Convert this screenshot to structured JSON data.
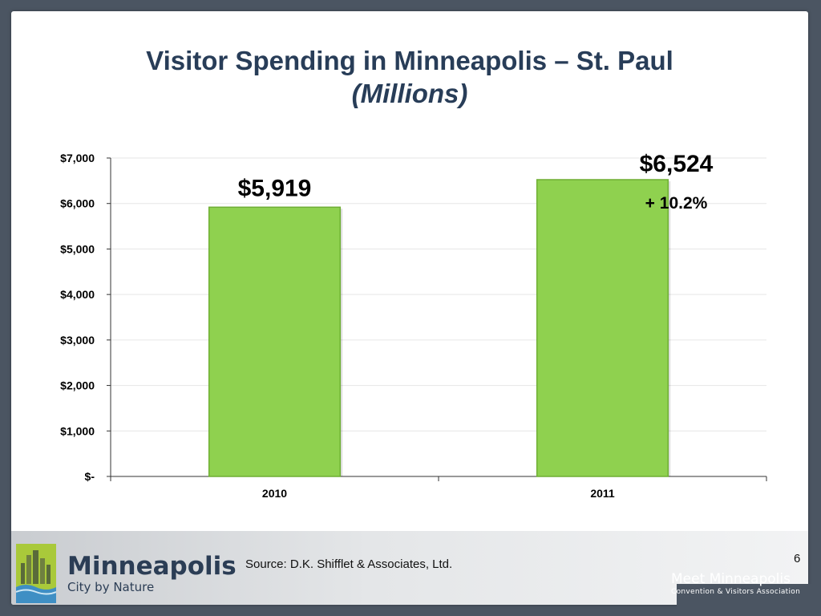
{
  "slide": {
    "title": "Visitor Spending in Minneapolis – St. Paul",
    "subtitle": "(Millions)",
    "source": "Source: D.K. Shifflet & Associates, Ltd.",
    "page_number": "6"
  },
  "branding": {
    "logo_name": "Minneapolis",
    "logo_tagline": "City by Nature",
    "brand_name": "Meet Minneapolis",
    "brand_sub": "Convention & Visitors Association"
  },
  "chart_data": {
    "type": "bar",
    "categories": [
      "2010",
      "2011"
    ],
    "values": [
      5919,
      6524
    ],
    "value_labels": [
      "$5,919",
      "$6,524"
    ],
    "annotations": [
      {
        "category": "2011",
        "text": "+ 10.2%"
      }
    ],
    "ylim": [
      0,
      7000
    ],
    "y_ticks": [
      0,
      1000,
      2000,
      3000,
      4000,
      5000,
      6000,
      7000
    ],
    "y_tick_labels": [
      "$-",
      "$1,000",
      "$2,000",
      "$3,000",
      "$4,000",
      "$5,000",
      "$6,000",
      "$7,000"
    ],
    "grid": true,
    "legend": "none",
    "bar_color": "#8fd14f",
    "bar_edge_color": "#6fae34"
  }
}
